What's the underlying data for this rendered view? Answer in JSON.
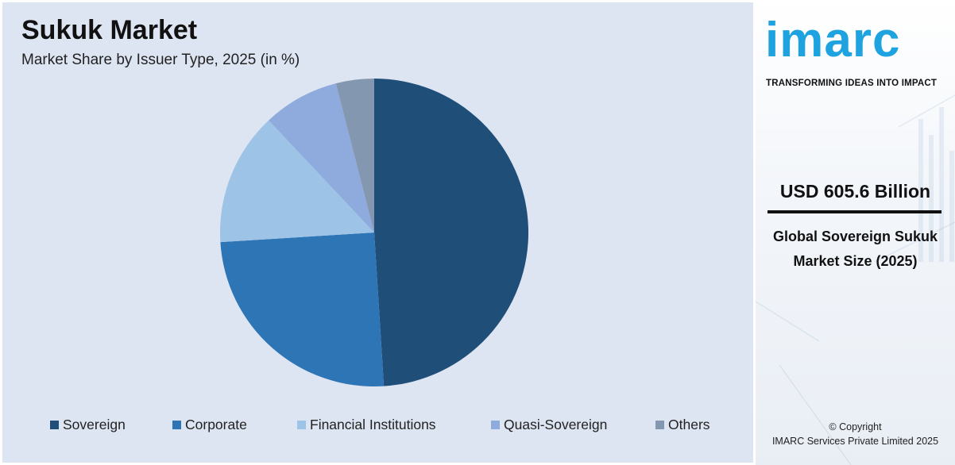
{
  "header": {
    "title": "Sukuk Market",
    "subtitle": "Market Share by Issuer Type, 2025 (in %)"
  },
  "chart_data": {
    "type": "pie",
    "title": "Sukuk Market",
    "subtitle": "Market Share by Issuer Type, 2025 (in %)",
    "categories": [
      "Sovereign",
      "Corporate",
      "Financial Institutions",
      "Quasi-Sovereign",
      "Others"
    ],
    "values": [
      49,
      25,
      14,
      8,
      4
    ],
    "colors": [
      "#1f4e79",
      "#2e75b6",
      "#9dc3e6",
      "#8faadc",
      "#8497b0"
    ],
    "start_angle": "12 o'clock",
    "direction": "clockwise",
    "legend_position": "bottom"
  },
  "sidebar": {
    "logo_text": "imarc",
    "tagline": "TRANSFORMING IDEAS INTO IMPACT",
    "kpi_value": "USD 605.6 Billion",
    "kpi_label": "Global Sovereign Sukuk Market Size (2025)",
    "copyright_line1": "© Copyright",
    "copyright_line2": "IMARC Services Private Limited 2025"
  }
}
